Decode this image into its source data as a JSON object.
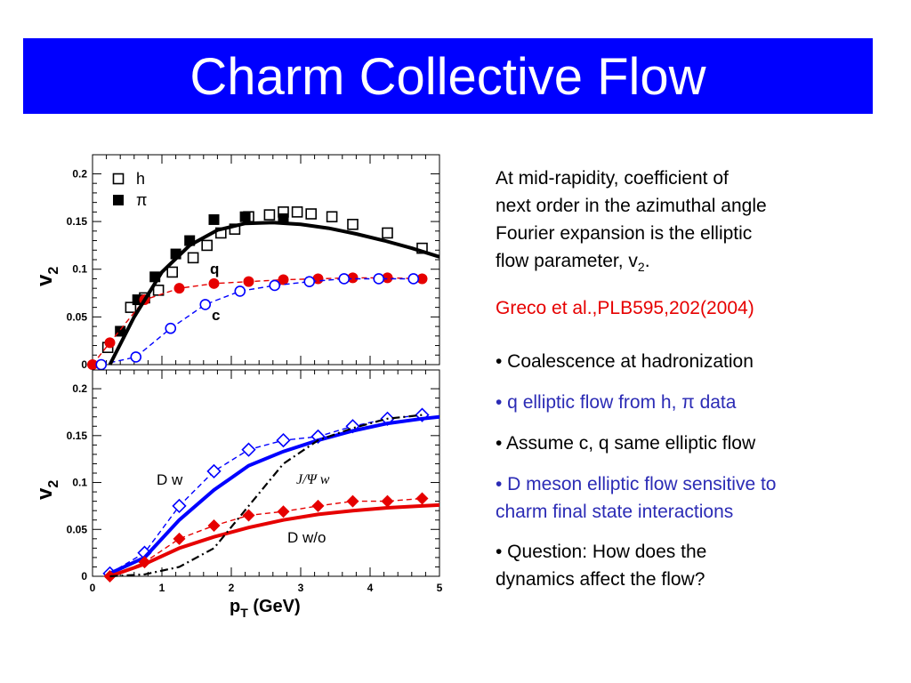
{
  "title": "Charm Collective Flow",
  "description": {
    "line1": "At mid-rapidity, coefficient of",
    "line2": "next order in the azimuthal angle",
    "line3": "Fourier expansion is the elliptic",
    "line4_pre": "flow parameter, v",
    "line4_sub": "2",
    "line4_post": "."
  },
  "reference": "Greco et al.,PLB595,202(2004)",
  "bullets": [
    {
      "text": "• Coalescence at hadronization",
      "color": "#000000"
    },
    {
      "text": "• q elliptic flow from h, π data",
      "color": "#2b2bb5"
    },
    {
      "text": "• Assume c, q same elliptic flow",
      "color": "#000000"
    },
    {
      "text": "• D meson elliptic flow sensitive to charm final state interactions",
      "line1": "• D meson elliptic flow sensitive to",
      "line2": "charm final state interactions",
      "color": "#2b2bb5"
    },
    {
      "text": "• Question: How does the dynamics affect the flow?",
      "line1": "• Question: How does the",
      "line2": "dynamics affect the flow?",
      "color": "#000000"
    }
  ],
  "chart_data": [
    {
      "type": "scatter",
      "xlim": [
        0,
        5
      ],
      "ylim": [
        0,
        0.22
      ],
      "yticks": [
        "0",
        "0.05",
        "0.1",
        "0.15",
        "0.2"
      ],
      "ylabel": "v",
      "ylabel_sub": "2",
      "legend": [
        {
          "name": "h",
          "marker": "open-square"
        },
        {
          "name": "π",
          "marker": "filled-square"
        }
      ],
      "legend_position": "top-left",
      "annotations": [
        "q",
        "c"
      ],
      "series": [
        {
          "name": "h",
          "marker": "open-square",
          "color": "#000000",
          "x": [
            0.22,
            0.55,
            0.75,
            0.95,
            1.15,
            1.45,
            1.65,
            1.85,
            2.05,
            2.25,
            2.55,
            2.75,
            2.95,
            3.15,
            3.45,
            3.75,
            4.25,
            4.75
          ],
          "y": [
            0.018,
            0.06,
            0.07,
            0.078,
            0.097,
            0.112,
            0.125,
            0.138,
            0.142,
            0.155,
            0.157,
            0.16,
            0.16,
            0.158,
            0.155,
            0.147,
            0.138,
            0.122
          ]
        },
        {
          "name": "π",
          "marker": "filled-square",
          "color": "#000000",
          "x": [
            0.4,
            0.65,
            0.9,
            1.2,
            1.4,
            1.75,
            2.2,
            2.75
          ],
          "y": [
            0.035,
            0.068,
            0.092,
            0.116,
            0.13,
            0.152,
            0.155,
            0.153
          ]
        },
        {
          "name": "q",
          "marker": "filled-circle",
          "color": "#e60000",
          "line": "dashed",
          "x": [
            0.0,
            0.25,
            0.75,
            1.25,
            1.75,
            2.25,
            2.75,
            3.25,
            3.75,
            4.25,
            4.75
          ],
          "y": [
            0.0,
            0.023,
            0.068,
            0.08,
            0.085,
            0.087,
            0.089,
            0.09,
            0.091,
            0.091,
            0.09
          ]
        },
        {
          "name": "c",
          "marker": "open-circle",
          "color": "#0000ff",
          "line": "dashed",
          "x": [
            0.125,
            0.625,
            1.125,
            1.625,
            2.125,
            2.625,
            3.125,
            3.625,
            4.125,
            4.625
          ],
          "y": [
            0.0,
            0.008,
            0.038,
            0.063,
            0.077,
            0.083,
            0.087,
            0.09,
            0.09,
            0.09
          ]
        },
        {
          "name": "curve",
          "line": "solid",
          "color": "#000000",
          "x": [
            0.25,
            0.6,
            1.0,
            1.4,
            1.8,
            2.2,
            2.6,
            3.0,
            3.4,
            3.8,
            4.2,
            4.6,
            5.0
          ],
          "y": [
            0.0,
            0.05,
            0.097,
            0.125,
            0.141,
            0.148,
            0.149,
            0.147,
            0.143,
            0.137,
            0.13,
            0.122,
            0.113
          ]
        }
      ]
    },
    {
      "type": "line",
      "xlim": [
        0,
        5
      ],
      "ylim": [
        0,
        0.22
      ],
      "xticks": [
        "0",
        "1",
        "2",
        "3",
        "4",
        "5"
      ],
      "yticks": [
        "0",
        "0.05",
        "0.1",
        "0.15",
        "0.2"
      ],
      "xlabel": "p",
      "xlabel_sub": "T",
      "xlabel_post": " (GeV)",
      "ylabel": "v",
      "ylabel_sub": "2",
      "annotations": [
        "D w",
        "J/Ψ w",
        "D w/o"
      ],
      "series": [
        {
          "name": "D w",
          "marker": "open-diamond",
          "color": "#0000ff",
          "line": "dashed",
          "x": [
            0.25,
            0.75,
            1.25,
            1.75,
            2.25,
            2.75,
            3.25,
            3.75,
            4.25,
            4.75
          ],
          "y": [
            0.003,
            0.025,
            0.075,
            0.112,
            0.135,
            0.145,
            0.149,
            0.16,
            0.168,
            0.172
          ]
        },
        {
          "name": "D w-curve",
          "line": "solid",
          "color": "#0000ff",
          "x": [
            0.25,
            0.75,
            1.25,
            1.75,
            2.25,
            2.75,
            3.25,
            3.75,
            4.25,
            4.75,
            5.0
          ],
          "y": [
            0.003,
            0.02,
            0.06,
            0.092,
            0.118,
            0.133,
            0.145,
            0.155,
            0.163,
            0.168,
            0.17
          ]
        },
        {
          "name": "D w/o",
          "marker": "filled-diamond",
          "color": "#e60000",
          "line": "dashed",
          "x": [
            0.25,
            0.75,
            1.25,
            1.75,
            2.25,
            2.75,
            3.25,
            3.75,
            4.25,
            4.75
          ],
          "y": [
            0.0,
            0.015,
            0.04,
            0.054,
            0.065,
            0.069,
            0.075,
            0.08,
            0.08,
            0.083
          ]
        },
        {
          "name": "D w/o-curve",
          "line": "solid",
          "color": "#e60000",
          "x": [
            0.25,
            0.75,
            1.25,
            1.75,
            2.25,
            2.75,
            3.25,
            3.75,
            4.25,
            4.75,
            5.0
          ],
          "y": [
            0.0,
            0.013,
            0.03,
            0.042,
            0.052,
            0.06,
            0.066,
            0.07,
            0.073,
            0.075,
            0.076
          ]
        },
        {
          "name": "J/Ψ w",
          "line": "dash-dot",
          "color": "#000000",
          "x": [
            0.25,
            0.75,
            1.25,
            1.75,
            2.25,
            2.75,
            3.25,
            3.75,
            4.25,
            4.75
          ],
          "y": [
            0.0,
            0.002,
            0.01,
            0.03,
            0.075,
            0.12,
            0.145,
            0.158,
            0.168,
            0.172
          ]
        }
      ]
    }
  ]
}
